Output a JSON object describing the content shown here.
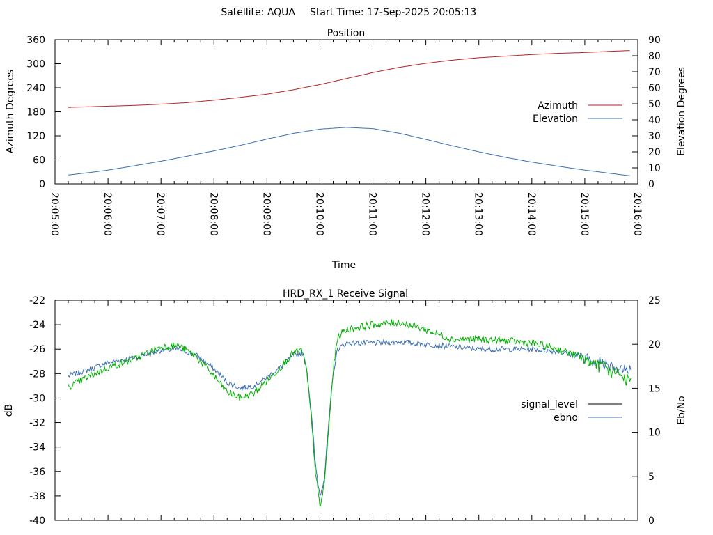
{
  "header": {
    "satellite_label": "Satellite: AQUA",
    "start_label": "Start Time: 17-Sep-2025 20:05:13"
  },
  "colors": {
    "azimuth": "#b22222",
    "elevation": "#3c6eb4",
    "signal_level": "#000000",
    "ebno": "#3c6eb4",
    "trace_green": "#00b000"
  },
  "chart_data": [
    {
      "type": "line",
      "title": "Position",
      "xlabel": "Time",
      "ylabel": "Azimuth Degrees",
      "y2label": "Elevation Degrees",
      "xlim": [
        "20:05:00",
        "20:16:00"
      ],
      "x_ticks": [
        "20:05:00",
        "20:06:00",
        "20:07:00",
        "20:08:00",
        "20:09:00",
        "20:10:00",
        "20:11:00",
        "20:12:00",
        "20:13:00",
        "20:14:00",
        "20:15:00",
        "20:16:00"
      ],
      "ylim": [
        0,
        360
      ],
      "y_ticks": [
        "0",
        "60",
        "120",
        "180",
        "240",
        "300",
        "360"
      ],
      "y2lim": [
        0,
        90
      ],
      "y2_ticks": [
        "0",
        "10",
        "20",
        "30",
        "40",
        "50",
        "60",
        "70",
        "80",
        "90"
      ],
      "legend_position": "right",
      "series": [
        {
          "name": "Azimuth",
          "axis": "y1",
          "color": "#b22222",
          "points": [
            [
              "20:05:15",
              191
            ],
            [
              "20:05:45",
              193
            ],
            [
              "20:06:00",
              194
            ],
            [
              "20:06:30",
              196
            ],
            [
              "20:07:00",
              199
            ],
            [
              "20:07:30",
              203
            ],
            [
              "20:08:00",
              209
            ],
            [
              "20:08:30",
              216
            ],
            [
              "20:09:00",
              224
            ],
            [
              "20:09:30",
              235
            ],
            [
              "20:10:00",
              248
            ],
            [
              "20:10:30",
              263
            ],
            [
              "20:11:00",
              278
            ],
            [
              "20:11:30",
              291
            ],
            [
              "20:12:00",
              301
            ],
            [
              "20:12:30",
              309
            ],
            [
              "20:13:00",
              315
            ],
            [
              "20:13:30",
              319
            ],
            [
              "20:14:00",
              323
            ],
            [
              "20:14:30",
              326
            ],
            [
              "20:15:00",
              328
            ],
            [
              "20:15:30",
              331
            ],
            [
              "20:15:52",
              333
            ]
          ]
        },
        {
          "name": "Elevation",
          "axis": "y2",
          "color": "#3c6eb4",
          "points": [
            [
              "20:05:15",
              5.5
            ],
            [
              "20:05:45",
              7.5
            ],
            [
              "20:06:00",
              8.6
            ],
            [
              "20:06:30",
              11.3
            ],
            [
              "20:07:00",
              14.2
            ],
            [
              "20:07:30",
              17.3
            ],
            [
              "20:08:00",
              20.6
            ],
            [
              "20:08:30",
              24.1
            ],
            [
              "20:09:00",
              28.0
            ],
            [
              "20:09:30",
              31.5
            ],
            [
              "20:10:00",
              34.2
            ],
            [
              "20:10:30",
              35.3
            ],
            [
              "20:11:00",
              34.5
            ],
            [
              "20:11:30",
              31.6
            ],
            [
              "20:12:00",
              27.8
            ],
            [
              "20:12:30",
              23.8
            ],
            [
              "20:13:00",
              20.0
            ],
            [
              "20:13:30",
              16.6
            ],
            [
              "20:14:00",
              13.6
            ],
            [
              "20:14:30",
              11.0
            ],
            [
              "20:15:00",
              8.6
            ],
            [
              "20:15:30",
              6.5
            ],
            [
              "20:15:52",
              5.0
            ]
          ]
        }
      ]
    },
    {
      "type": "line",
      "title": "HRD_RX_1 Receive Signal",
      "xlabel": "",
      "ylabel": "dB",
      "y2label": "Eb/No",
      "xlim": [
        "20:05:00",
        "20:16:00"
      ],
      "ylim": [
        -40,
        -22
      ],
      "y_ticks": [
        "-22",
        "-24",
        "-26",
        "-28",
        "-30",
        "-32",
        "-34",
        "-36",
        "-38",
        "-40"
      ],
      "y2lim": [
        0,
        25
      ],
      "y2_ticks": [
        "0",
        "5",
        "10",
        "15",
        "20",
        "25"
      ],
      "legend_position": "right",
      "legend": [
        {
          "name": "signal_level",
          "color": "#000000"
        },
        {
          "name": "ebno",
          "color": "#3c6eb4"
        }
      ],
      "series": [
        {
          "name": "ebno",
          "axis": "y1",
          "color": "#3c6eb4",
          "points": [
            [
              "20:05:15",
              -28.2
            ],
            [
              "20:05:45",
              -27.5
            ],
            [
              "20:06:00",
              -27.1
            ],
            [
              "20:06:30",
              -26.7
            ],
            [
              "20:07:00",
              -26.1
            ],
            [
              "20:07:20",
              -26.0
            ],
            [
              "20:07:40",
              -26.5
            ],
            [
              "20:08:00",
              -27.6
            ],
            [
              "20:08:15",
              -28.7
            ],
            [
              "20:08:30",
              -29.2
            ],
            [
              "20:08:45",
              -29.0
            ],
            [
              "20:09:00",
              -28.3
            ],
            [
              "20:09:15",
              -27.5
            ],
            [
              "20:09:30",
              -26.5
            ],
            [
              "20:09:40",
              -26.3
            ],
            [
              "20:09:45",
              -27.5
            ],
            [
              "20:09:50",
              -31.0
            ],
            [
              "20:09:55",
              -35.5
            ],
            [
              "20:10:00",
              -38.0
            ],
            [
              "20:10:05",
              -36.5
            ],
            [
              "20:10:10",
              -32.0
            ],
            [
              "20:10:15",
              -28.0
            ],
            [
              "20:10:20",
              -26.0
            ],
            [
              "20:10:30",
              -25.5
            ],
            [
              "20:11:00",
              -25.5
            ],
            [
              "20:11:30",
              -25.4
            ],
            [
              "20:12:00",
              -25.6
            ],
            [
              "20:12:30",
              -25.8
            ],
            [
              "20:13:00",
              -26.0
            ],
            [
              "20:13:30",
              -26.0
            ],
            [
              "20:14:00",
              -26.0
            ],
            [
              "20:14:30",
              -26.2
            ],
            [
              "20:15:00",
              -26.7
            ],
            [
              "20:15:30",
              -27.3
            ],
            [
              "20:15:52",
              -27.8
            ]
          ]
        },
        {
          "name": "",
          "axis": "y1",
          "color": "#00b000",
          "points": [
            [
              "20:05:15",
              -29.1
            ],
            [
              "20:05:45",
              -28.0
            ],
            [
              "20:06:00",
              -27.5
            ],
            [
              "20:06:30",
              -26.8
            ],
            [
              "20:07:00",
              -25.8
            ],
            [
              "20:07:20",
              -25.7
            ],
            [
              "20:07:40",
              -26.6
            ],
            [
              "20:08:00",
              -28.2
            ],
            [
              "20:08:15",
              -29.5
            ],
            [
              "20:08:30",
              -30.0
            ],
            [
              "20:08:45",
              -29.6
            ],
            [
              "20:09:00",
              -28.6
            ],
            [
              "20:09:15",
              -27.5
            ],
            [
              "20:09:30",
              -26.3
            ],
            [
              "20:09:40",
              -26.1
            ],
            [
              "20:09:45",
              -27.8
            ],
            [
              "20:09:50",
              -31.5
            ],
            [
              "20:09:55",
              -36.0
            ],
            [
              "20:10:00",
              -39.0
            ],
            [
              "20:10:05",
              -37.0
            ],
            [
              "20:10:10",
              -32.5
            ],
            [
              "20:10:15",
              -27.8
            ],
            [
              "20:10:20",
              -25.0
            ],
            [
              "20:10:30",
              -24.4
            ],
            [
              "20:11:00",
              -24.0
            ],
            [
              "20:11:30",
              -23.8
            ],
            [
              "20:12:00",
              -24.4
            ],
            [
              "20:12:30",
              -25.2
            ],
            [
              "20:13:00",
              -25.2
            ],
            [
              "20:13:30",
              -25.3
            ],
            [
              "20:14:00",
              -25.5
            ],
            [
              "20:14:30",
              -26.0
            ],
            [
              "20:15:00",
              -26.8
            ],
            [
              "20:15:30",
              -27.8
            ],
            [
              "20:15:52",
              -28.6
            ]
          ]
        }
      ]
    }
  ]
}
